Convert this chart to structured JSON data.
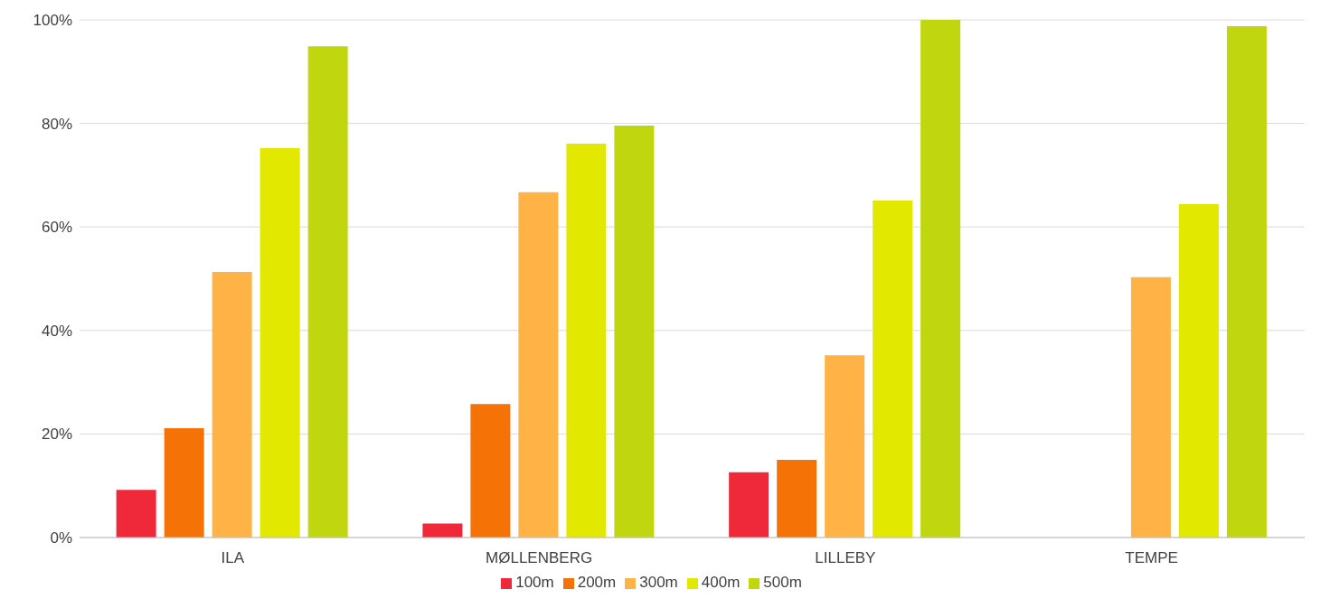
{
  "chart_data": {
    "type": "bar",
    "categories": [
      "ILA",
      "MØLLENBERG",
      "LILLEBY",
      "TEMPE"
    ],
    "series": [
      {
        "name": "100m",
        "color": "#f0293a",
        "values": [
          9.2,
          2.7,
          12.6,
          0
        ]
      },
      {
        "name": "200m",
        "color": "#f57207",
        "values": [
          21.1,
          25.8,
          15,
          0
        ]
      },
      {
        "name": "300m",
        "color": "#ffb347",
        "values": [
          51.3,
          66.7,
          35.2,
          50.3
        ]
      },
      {
        "name": "400m",
        "color": "#e2e800",
        "values": [
          75.2,
          76.1,
          65.1,
          64.4
        ]
      },
      {
        "name": "500m",
        "color": "#c0d60f",
        "values": [
          94.9,
          79.6,
          100,
          98.8
        ]
      }
    ],
    "ylim": [
      0,
      100
    ],
    "yticks": [
      {
        "value": 0,
        "label": "0%"
      },
      {
        "value": 20,
        "label": "20%"
      },
      {
        "value": 40,
        "label": "40%"
      },
      {
        "value": 60,
        "label": "60%"
      },
      {
        "value": 80,
        "label": "80%"
      },
      {
        "value": 100,
        "label": "100%"
      }
    ],
    "grid": "y",
    "legend": "bottom"
  }
}
